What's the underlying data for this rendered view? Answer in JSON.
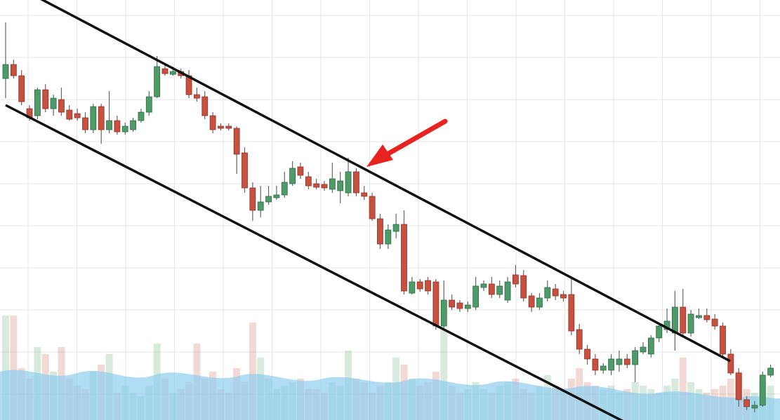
{
  "chart_data": {
    "type": "candlestick",
    "open": [
      488,
      508,
      492,
      445,
      435,
      472,
      445,
      458,
      443,
      438,
      432,
      415,
      448,
      415,
      428,
      412,
      415,
      428,
      440,
      462,
      502,
      494,
      498,
      492,
      465,
      462,
      435,
      420,
      420,
      417,
      382,
      332,
      300,
      312,
      318,
      322,
      338,
      362,
      348,
      338,
      337,
      330,
      328,
      325,
      355,
      325,
      320,
      288,
      252,
      270,
      280,
      182,
      198,
      200,
      198,
      135,
      172,
      168,
      160,
      162,
      190,
      195,
      180,
      172,
      208,
      207,
      178,
      162,
      175,
      188,
      180,
      180,
      130,
      102,
      88,
      72,
      72,
      80,
      88,
      80,
      98,
      95,
      118,
      130,
      125,
      162,
      125,
      147,
      150,
      145,
      135,
      95,
      68,
      30,
      18,
      22,
      65
    ],
    "high": [
      568,
      515,
      500,
      450,
      475,
      480,
      465,
      475,
      450,
      445,
      440,
      452,
      452,
      470,
      435,
      425,
      432,
      445,
      470,
      520,
      510,
      505,
      502,
      500,
      475,
      470,
      440,
      424,
      424,
      420,
      390,
      340,
      335,
      335,
      335,
      355,
      370,
      368,
      355,
      345,
      342,
      368,
      355,
      375,
      360,
      335,
      325,
      295,
      280,
      295,
      300,
      205,
      202,
      205,
      202,
      200,
      180,
      172,
      170,
      205,
      200,
      205,
      200,
      205,
      222,
      215,
      182,
      182,
      200,
      195,
      185,
      202,
      138,
      108,
      95,
      82,
      95,
      100,
      95,
      105,
      112,
      122,
      140,
      160,
      185,
      188,
      158,
      160,
      160,
      152,
      140,
      102,
      75,
      35,
      28,
      70,
      80
    ],
    "low": [
      460,
      488,
      450,
      428,
      430,
      440,
      435,
      435,
      428,
      428,
      410,
      410,
      395,
      410,
      408,
      408,
      412,
      425,
      435,
      460,
      492,
      492,
      488,
      460,
      455,
      430,
      410,
      414,
      414,
      352,
      325,
      285,
      290,
      308,
      315,
      318,
      335,
      345,
      330,
      330,
      328,
      325,
      310,
      320,
      320,
      315,
      285,
      245,
      245,
      260,
      180,
      180,
      184,
      180,
      130,
      130,
      158,
      155,
      155,
      158,
      185,
      175,
      175,
      168,
      190,
      170,
      155,
      158,
      170,
      172,
      170,
      122,
      95,
      80,
      65,
      67,
      65,
      70,
      75,
      55,
      95,
      90,
      112,
      125,
      100,
      120,
      120,
      145,
      140,
      130,
      90,
      65,
      20,
      15,
      12,
      20,
      62
    ],
    "close": [
      508,
      492,
      455,
      432,
      472,
      445,
      460,
      440,
      430,
      432,
      415,
      448,
      415,
      428,
      412,
      420,
      428,
      440,
      462,
      505,
      495,
      498,
      492,
      465,
      460,
      435,
      415,
      417,
      417,
      380,
      332,
      300,
      312,
      320,
      322,
      340,
      360,
      350,
      335,
      333,
      332,
      345,
      342,
      355,
      325,
      320,
      288,
      252,
      272,
      280,
      185,
      198,
      188,
      185,
      135,
      172,
      162,
      160,
      165,
      192,
      195,
      180,
      192,
      198,
      195,
      175,
      162,
      175,
      190,
      178,
      175,
      128,
      102,
      88,
      72,
      78,
      88,
      88,
      80,
      100,
      105,
      118,
      135,
      142,
      162,
      125,
      152,
      150,
      144,
      135,
      95,
      68,
      30,
      20,
      22,
      65,
      75
    ],
    "volume": [
      150,
      150,
      75,
      60,
      105,
      95,
      70,
      105,
      60,
      50,
      45,
      70,
      80,
      95,
      40,
      50,
      40,
      35,
      50,
      110,
      60,
      40,
      45,
      55,
      110,
      60,
      70,
      45,
      40,
      75,
      55,
      140,
      90,
      60,
      45,
      50,
      55,
      60,
      45,
      45,
      40,
      55,
      50,
      100,
      60,
      55,
      40,
      50,
      55,
      90,
      80,
      60,
      50,
      55,
      70,
      130,
      50,
      40,
      45,
      55,
      45,
      40,
      50,
      55,
      60,
      45,
      40,
      50,
      65,
      50,
      45,
      60,
      75,
      55,
      50,
      45,
      50,
      40,
      45,
      55,
      50,
      45,
      40,
      50,
      60,
      90,
      55,
      45,
      40,
      45,
      50,
      60,
      70,
      45,
      40,
      55,
      50
    ],
    "up_color": "#4e9a68",
    "down_color": "#c8503f",
    "ylim": [
      0,
      600
    ],
    "y2lim": [
      0,
      600
    ],
    "grid": true
  }
}
